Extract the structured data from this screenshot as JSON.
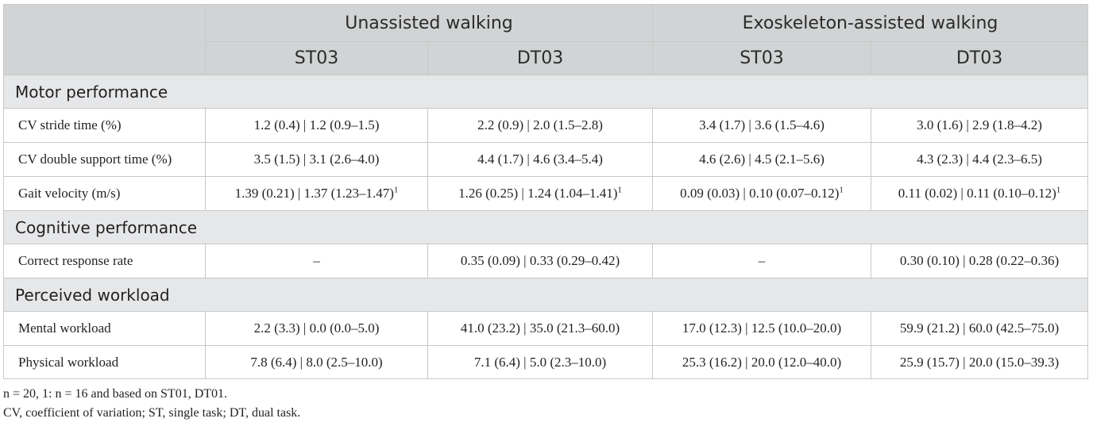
{
  "table": {
    "groups": [
      "Unassisted walking",
      "Exoskeleton-assisted walking"
    ],
    "subheaders": [
      "ST03",
      "DT03",
      "ST03",
      "DT03"
    ],
    "sections": [
      {
        "title": "Motor performance",
        "rows": [
          {
            "label": "CV stride time (%)",
            "values": [
              "1.2 (0.4) | 1.2 (0.9–1.5)",
              "2.2 (0.9) | 2.0 (1.5–2.8)",
              "3.4 (1.7) | 3.6 (1.5–4.6)",
              "3.0 (1.6) | 2.9 (1.8–4.2)"
            ],
            "sup": [
              "",
              "",
              "",
              ""
            ]
          },
          {
            "label": "CV double support time (%)",
            "values": [
              "3.5 (1.5) | 3.1 (2.6–4.0)",
              "4.4 (1.7) | 4.6 (3.4–5.4)",
              "4.6 (2.6) | 4.5 (2.1–5.6)",
              "4.3 (2.3) | 4.4 (2.3–6.5)"
            ],
            "sup": [
              "",
              "",
              "",
              ""
            ]
          },
          {
            "label": "Gait velocity (m/s)",
            "values": [
              "1.39 (0.21) | 1.37 (1.23–1.47)",
              "1.26 (0.25) | 1.24 (1.04–1.41)",
              "0.09 (0.03) | 0.10 (0.07–0.12)",
              "0.11 (0.02) | 0.11 (0.10–0.12)"
            ],
            "sup": [
              "1",
              "1",
              "1",
              "1"
            ]
          }
        ]
      },
      {
        "title": "Cognitive performance",
        "rows": [
          {
            "label": "Correct response rate",
            "values": [
              "–",
              "0.35 (0.09) | 0.33 (0.29–0.42)",
              "–",
              "0.30 (0.10) | 0.28 (0.22–0.36)"
            ],
            "sup": [
              "",
              "",
              "",
              ""
            ]
          }
        ]
      },
      {
        "title": "Perceived workload",
        "rows": [
          {
            "label": "Mental workload",
            "values": [
              "2.2 (3.3) | 0.0 (0.0–5.0)",
              "41.0 (23.2) | 35.0 (21.3–60.0)",
              "17.0 (12.3) | 12.5 (10.0–20.0)",
              "59.9 (21.2) | 60.0 (42.5–75.0)"
            ],
            "sup": [
              "",
              "",
              "",
              ""
            ]
          },
          {
            "label": "Physical workload",
            "values": [
              "7.8 (6.4) | 8.0 (2.5–10.0)",
              "7.1 (6.4) | 5.0 (2.3–10.0)",
              "25.3 (16.2) | 20.0 (12.0–40.0)",
              "25.9 (15.7) | 20.0 (15.0–39.3)"
            ],
            "sup": [
              "",
              "",
              "",
              ""
            ]
          }
        ]
      }
    ]
  },
  "footnotes": [
    "n = 20, 1: n = 16 and based on ST01, DT01.",
    "CV, coefficient of variation; ST, single task; DT, dual task."
  ],
  "colors": {
    "header_bg": "#d1d3d4",
    "section_bg": "#e6e7e8",
    "border": "#c8c8c8"
  }
}
